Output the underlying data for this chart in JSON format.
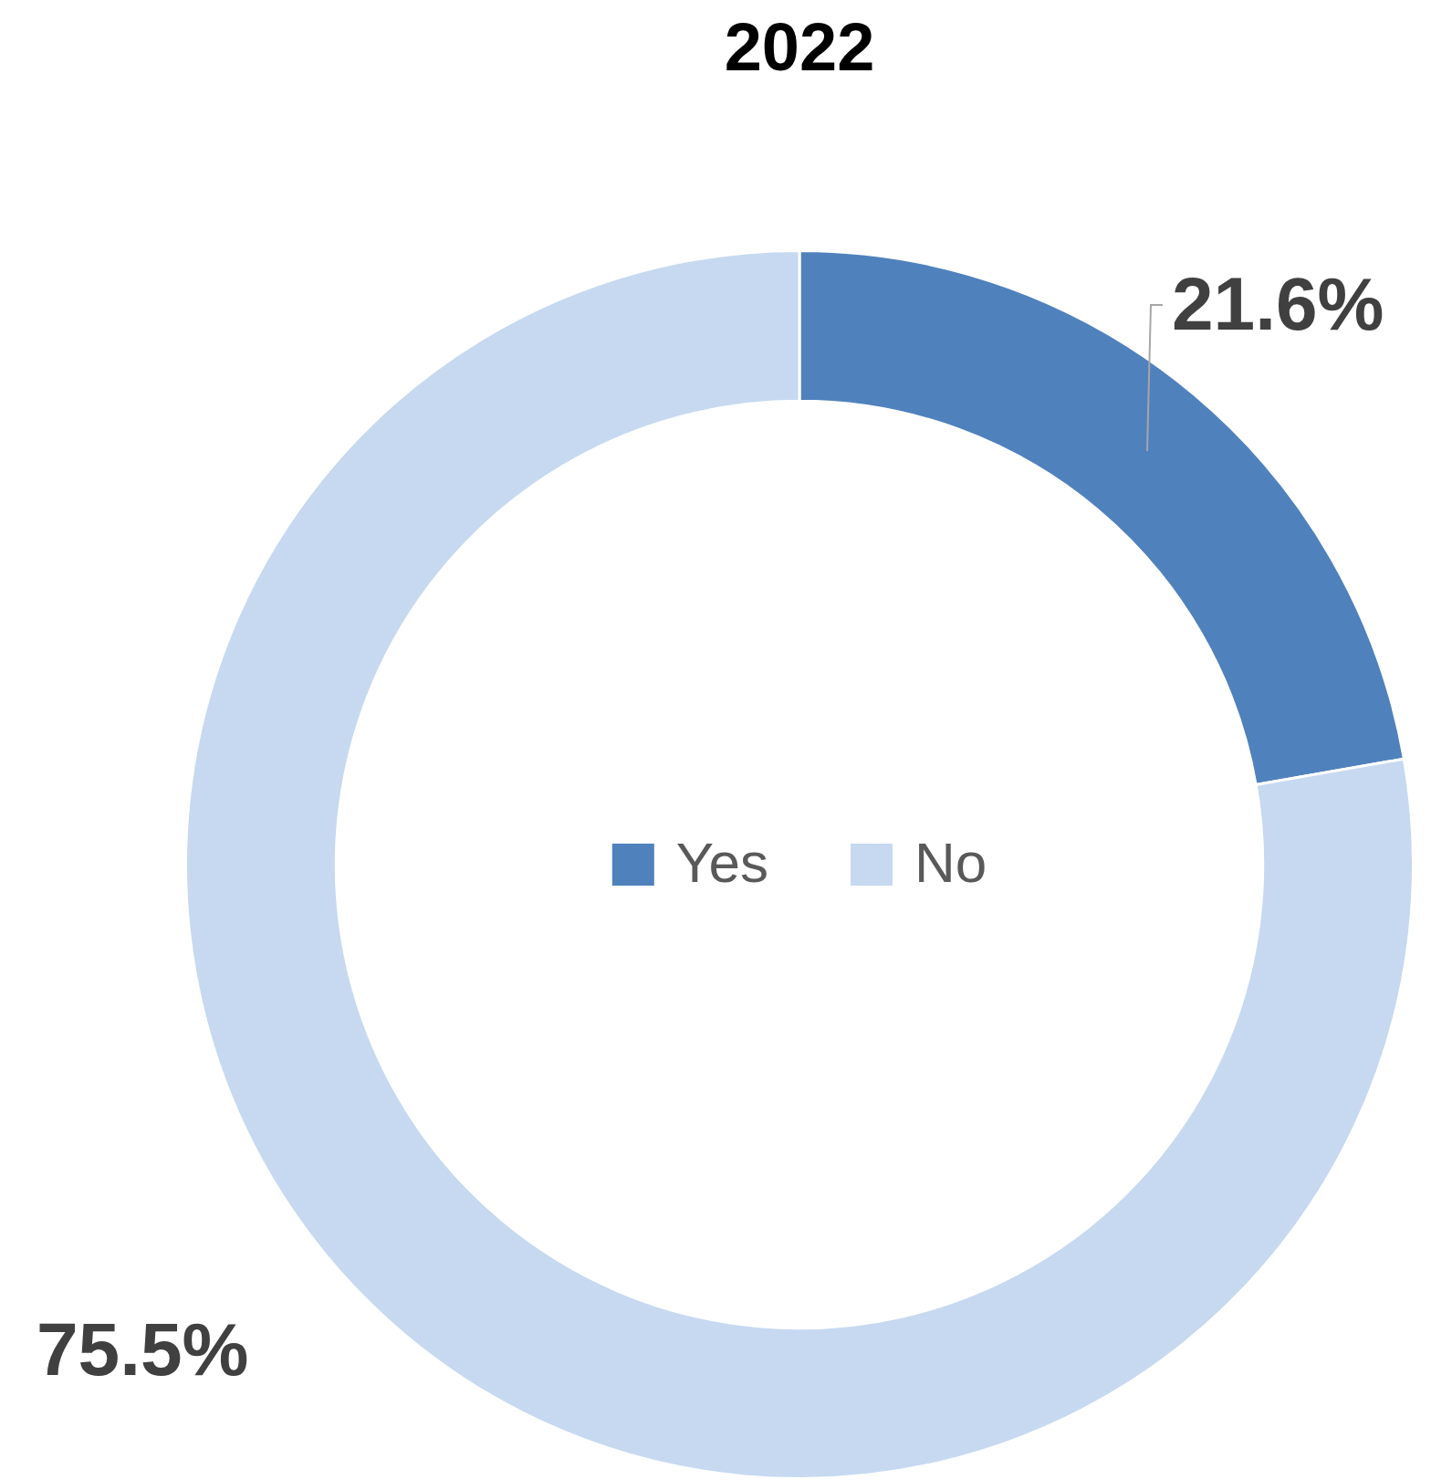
{
  "chart_data": {
    "type": "donut",
    "title": "2022",
    "categories": [
      "Yes",
      "No"
    ],
    "values": [
      21.6,
      75.5
    ],
    "value_labels": [
      "21.6%",
      "75.5%"
    ],
    "colors": [
      "#4f81bd",
      "#c6d9f0"
    ],
    "legend": "center"
  }
}
